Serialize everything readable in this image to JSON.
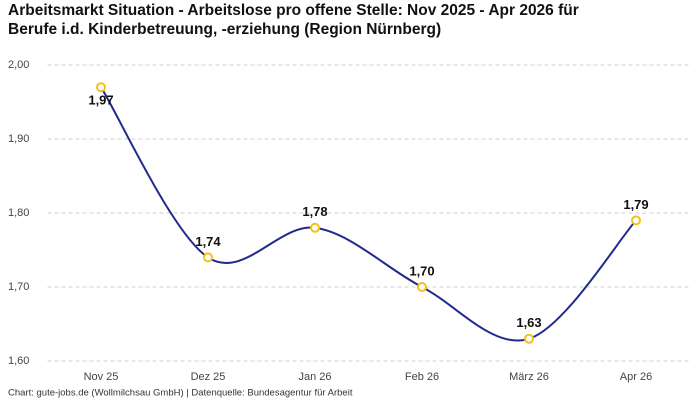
{
  "chart_data": {
    "type": "line",
    "title": [
      "Arbeitsmarkt Situation - Arbeitslose pro offene Stelle: Nov 2025 - Apr 2026 für",
      "Berufe i.d. Kinderbetreuung, -erziehung (Region Nürnberg)"
    ],
    "categories": [
      "Nov 25",
      "Dez 25",
      "Jan 26",
      "Feb 26",
      "März 26",
      "Apr 26"
    ],
    "values": [
      1.97,
      1.74,
      1.78,
      1.7,
      1.63,
      1.79
    ],
    "value_labels": [
      "1,97",
      "1,74",
      "1,78",
      "1,70",
      "1,63",
      "1,79"
    ],
    "color": "#1f2a8c",
    "marker_color": "#f2c21b",
    "ylim": [
      1.6,
      2.0
    ],
    "yticks": [
      {
        "value": 1.6,
        "label": "1,60"
      },
      {
        "value": 1.7,
        "label": "1,70"
      },
      {
        "value": 1.8,
        "label": "1,80"
      },
      {
        "value": 1.9,
        "label": "1,90"
      },
      {
        "value": 2.0,
        "label": "2,00"
      }
    ],
    "grid": true,
    "source": "Chart: gute-jobs.de (Wollmilchsau GmbH) | Datenquelle: Bundesagentur für Arbeit"
  }
}
